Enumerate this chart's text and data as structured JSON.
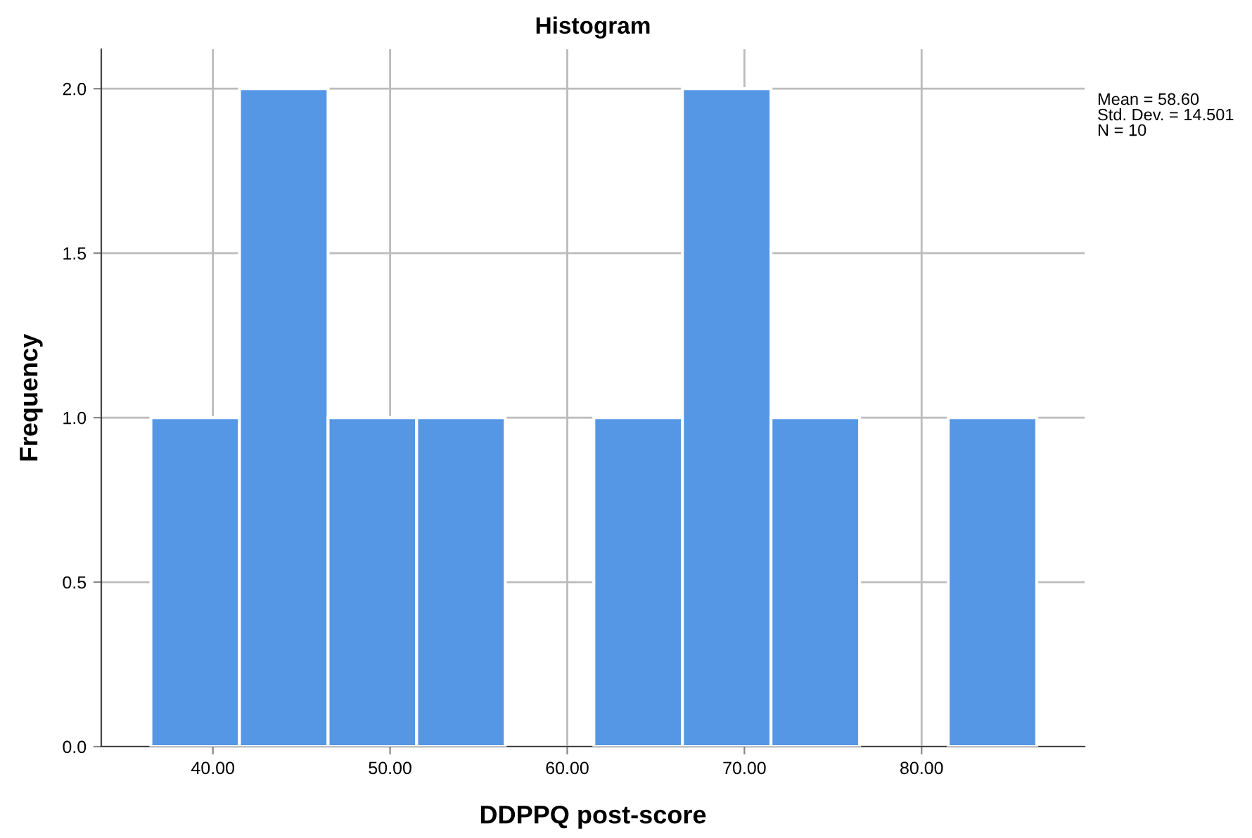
{
  "chart_data": {
    "type": "histogram",
    "title": "Histogram",
    "xlabel": "DDPPQ post-score",
    "ylabel": "Frequency",
    "bins": [
      36.5,
      41.5,
      46.5,
      51.5,
      56.5,
      61.5,
      66.5,
      71.5,
      76.5,
      81.5,
      86.5
    ],
    "values": [
      1,
      2,
      1,
      1,
      0,
      1,
      2,
      1,
      0,
      1
    ],
    "color": "#5597e4",
    "xlim": [
      33.7,
      89.2
    ],
    "ylim": [
      0,
      2.12
    ],
    "xticks": [
      {
        "value": 40,
        "label": "40.00"
      },
      {
        "value": 50,
        "label": "50.00"
      },
      {
        "value": 60,
        "label": "60.00"
      },
      {
        "value": 70,
        "label": "70.00"
      },
      {
        "value": 80,
        "label": "80.00"
      }
    ],
    "yticks": [
      {
        "value": 0,
        "label": "0.0"
      },
      {
        "value": 0.5,
        "label": "0.5"
      },
      {
        "value": 1,
        "label": "1.0"
      },
      {
        "value": 1.5,
        "label": "1.5"
      },
      {
        "value": 2,
        "label": "2.0"
      }
    ],
    "grid": true,
    "annotations": [
      "Mean = 58.60",
      "Std. Dev. = 14.501",
      "N = 10"
    ]
  }
}
